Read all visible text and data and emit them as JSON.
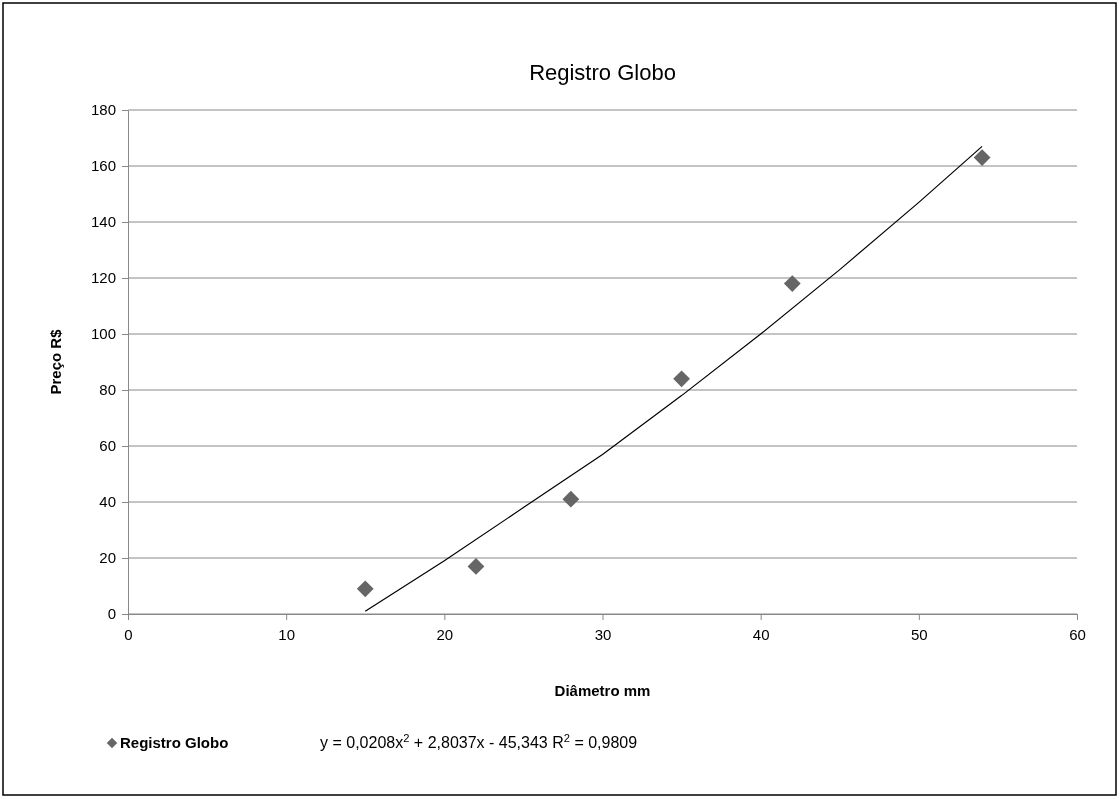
{
  "chart_data": {
    "type": "scatter",
    "title": "Registro Globo",
    "xlabel": "Diâmetro mm",
    "ylabel": "Preço R$",
    "xlim": [
      0,
      60
    ],
    "xticks": [
      0,
      10,
      20,
      30,
      40,
      50,
      60
    ],
    "ylim": [
      0,
      180
    ],
    "yticks": [
      0,
      20,
      40,
      60,
      80,
      100,
      120,
      140,
      160,
      180
    ],
    "grid": "y",
    "legend": "bottom left",
    "series": [
      {
        "name": "Registro Globo",
        "color": "#666666",
        "marker": "diamond",
        "x": [
          15,
          22,
          28,
          35,
          42,
          54
        ],
        "values": [
          9,
          17,
          41,
          84,
          118,
          163
        ]
      },
      {
        "type": "line",
        "color": "#000000",
        "x": [
          15,
          20,
          25,
          30,
          35,
          40,
          45,
          50,
          54
        ],
        "values": [
          1,
          19,
          38,
          57,
          78,
          100,
          123,
          147,
          167
        ]
      }
    ],
    "annotations": [
      "y = 0,0208x$^{2}$ + 2,8037x - 45,343 R$^{2}$ = 0,9809"
    ]
  }
}
